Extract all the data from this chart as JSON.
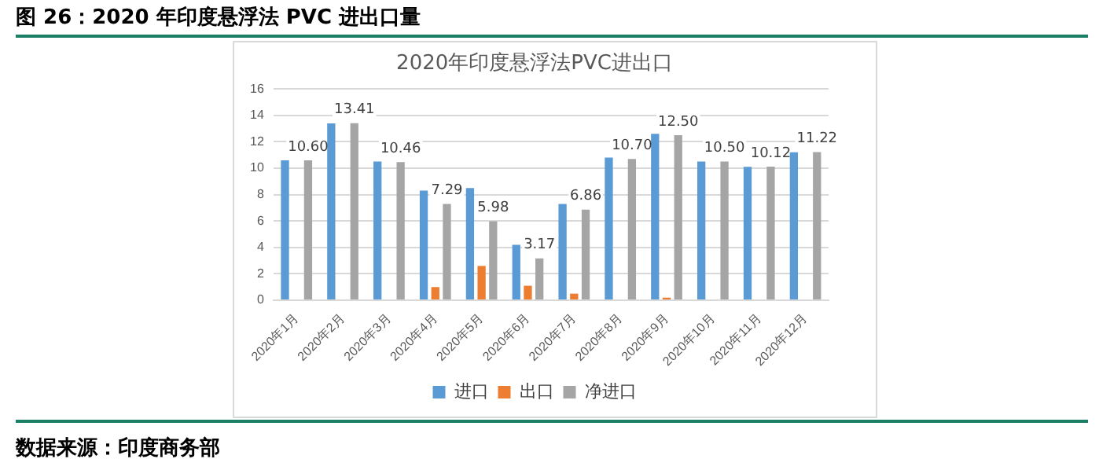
{
  "chart_data": {
    "type": "bar",
    "title": "2020年印度悬浮法PVC进出口",
    "categories": [
      "2020年1月",
      "2020年2月",
      "2020年3月",
      "2020年4月",
      "2020年5月",
      "2020年6月",
      "2020年7月",
      "2020年8月",
      "2020年9月",
      "2020年10月",
      "2020年11月",
      "2020年12月"
    ],
    "series": [
      {
        "name": "进口",
        "color": "#5b9bd5",
        "values": [
          10.6,
          13.4,
          10.5,
          8.3,
          8.5,
          4.2,
          7.3,
          10.8,
          12.6,
          10.5,
          10.1,
          11.2
        ]
      },
      {
        "name": "出口",
        "color": "#ed7d31",
        "values": [
          0,
          0,
          0,
          1.0,
          2.6,
          1.1,
          0.5,
          0,
          0.2,
          0,
          0,
          0
        ]
      },
      {
        "name": "净进口",
        "color": "#a5a5a5",
        "values": [
          10.6,
          13.41,
          10.46,
          7.29,
          5.98,
          3.17,
          6.86,
          10.7,
          12.5,
          10.5,
          10.12,
          11.22
        ],
        "value_labels": [
          "10.60",
          "13.41",
          "10.46",
          "7.29",
          "5.98",
          "3.17",
          "6.86",
          "10.70",
          "12.50",
          "10.50",
          "10.12",
          "11.22"
        ]
      }
    ],
    "ylim": [
      0,
      16
    ],
    "yticks": [
      0,
      2,
      4,
      6,
      8,
      10,
      12,
      14,
      16
    ],
    "grid": "y",
    "legend": "bottom",
    "annotations": [
      "图 26：2020 年印度悬浮法 PVC 进出口量",
      "数据来源：印度商务部"
    ]
  }
}
